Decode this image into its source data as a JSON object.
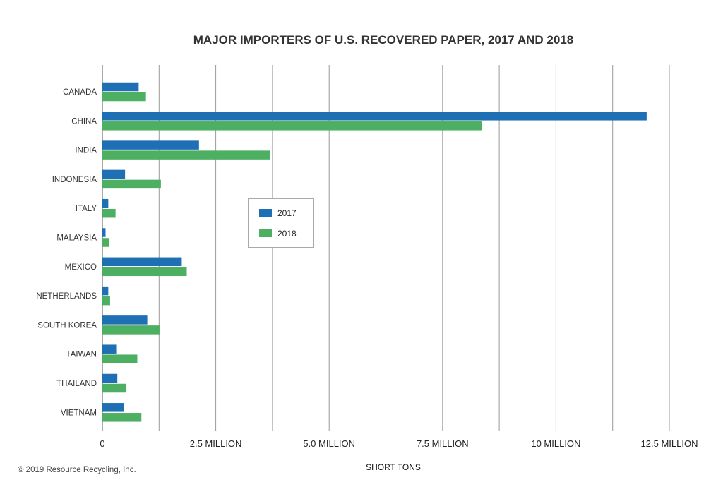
{
  "chart_data": {
    "type": "bar",
    "orientation": "horizontal",
    "title": "MAJOR IMPORTERS OF U.S. RECOVERED PAPER, 2017 AND 2018",
    "xlabel": "SHORT TONS",
    "ylabel": "",
    "categories": [
      "CANADA",
      "CHINA",
      "INDIA",
      "INDONESIA",
      "ITALY",
      "MALAYSIA",
      "MEXICO",
      "NETHERLANDS",
      "SOUTH KOREA",
      "TAIWAN",
      "THAILAND",
      "VIETNAM"
    ],
    "series": [
      {
        "name": "2017",
        "color": "#1f6fb5",
        "values": [
          800000,
          12000000,
          2130000,
          500000,
          130000,
          70000,
          1750000,
          130000,
          990000,
          320000,
          330000,
          470000
        ]
      },
      {
        "name": "2018",
        "color": "#4daf62",
        "values": [
          960000,
          8360000,
          3700000,
          1290000,
          290000,
          140000,
          1860000,
          170000,
          1260000,
          770000,
          530000,
          860000
        ]
      }
    ],
    "xlim": [
      0,
      12500000
    ],
    "x_ticks": [
      {
        "value": 0,
        "label": "0"
      },
      {
        "value": 2500000,
        "label": "2.5 MILLION"
      },
      {
        "value": 5000000,
        "label": "5.0 MILLION"
      },
      {
        "value": 7500000,
        "label": "7.5 MILLION"
      },
      {
        "value": 10000000,
        "label": "10 MILLION"
      },
      {
        "value": 12500000,
        "label": "12.5 MILLION"
      }
    ],
    "grid_values": [
      1250000,
      2500000,
      3750000,
      5000000,
      6250000,
      7500000,
      8750000,
      10000000,
      11250000,
      12500000
    ],
    "grid": true,
    "legend_position": "center"
  },
  "copyright": "© 2019 Resource Recycling, Inc."
}
